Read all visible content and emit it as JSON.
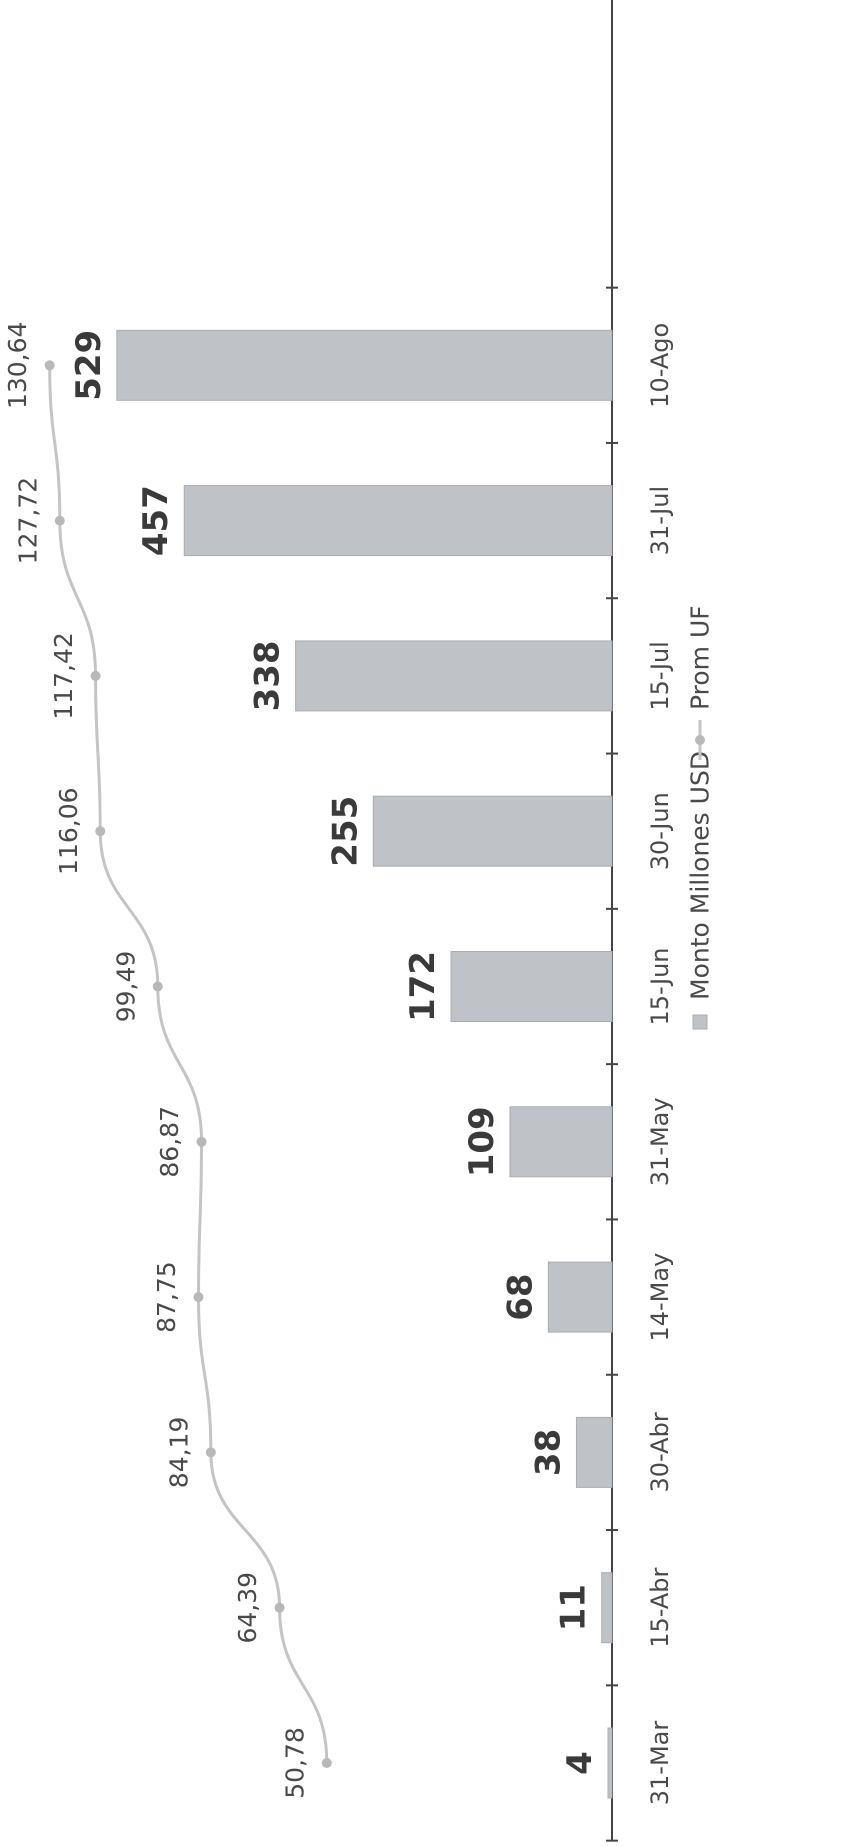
{
  "chart_data": {
    "type": "bar",
    "orientation": "horizontal",
    "categories": [
      "31-Mar",
      "15-Abr",
      "30-Abr",
      "14-May",
      "31-May",
      "15-Jun",
      "30-Jun",
      "15-Jul",
      "31-Jul",
      "10-Ago"
    ],
    "series": [
      {
        "name": "Monto Millones USD",
        "type": "bar",
        "values": [
          4,
          11,
          38,
          68,
          109,
          172,
          255,
          338,
          457,
          529
        ],
        "labels": [
          "4",
          "11",
          "38",
          "68",
          "109",
          "172",
          "255",
          "338",
          "457",
          "529"
        ],
        "color": "#bfc3c8"
      },
      {
        "name": "Prom UF",
        "type": "line",
        "values": [
          50.78,
          64.39,
          84.19,
          87.75,
          86.87,
          99.49,
          116.06,
          117.42,
          127.72,
          130.64
        ],
        "labels": [
          "50,78",
          "64,39",
          "84,19",
          "87,75",
          "86,87",
          "99,49",
          "116,06",
          "117,42",
          "127,72",
          "130,64"
        ],
        "color": "#c4c4c4"
      }
    ],
    "legend": {
      "position": "bottom",
      "items": [
        "Monto Millones USD",
        "Prom UF"
      ]
    },
    "grid": false,
    "rotation": "rotated 90 degrees counter-clockwise"
  }
}
